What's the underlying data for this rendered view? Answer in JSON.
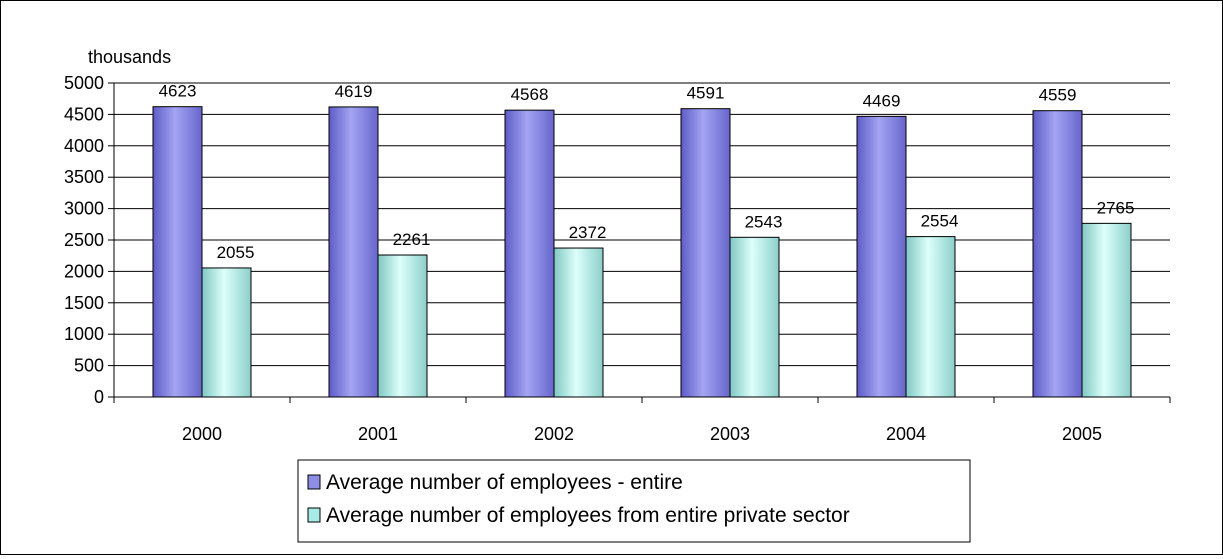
{
  "chart_data": {
    "type": "bar",
    "unit_label": "thousands",
    "categories": [
      "2000",
      "2001",
      "2002",
      "2003",
      "2004",
      "2005"
    ],
    "series": [
      {
        "name": "Average number of employees - entire",
        "values": [
          4623,
          4619,
          4568,
          4591,
          4469,
          4559
        ],
        "color": "#8d8de6"
      },
      {
        "name": "Average number of employees from entire private sector",
        "values": [
          2055,
          2261,
          2372,
          2543,
          2554,
          2765
        ],
        "color": "#a6ece6"
      }
    ],
    "ylim": [
      0,
      5000
    ],
    "yticks": [
      "0",
      "500",
      "1000",
      "1500",
      "2000",
      "2500",
      "3000",
      "3500",
      "4000",
      "4500",
      "5000"
    ],
    "grid": true,
    "legend_position": "bottom"
  }
}
